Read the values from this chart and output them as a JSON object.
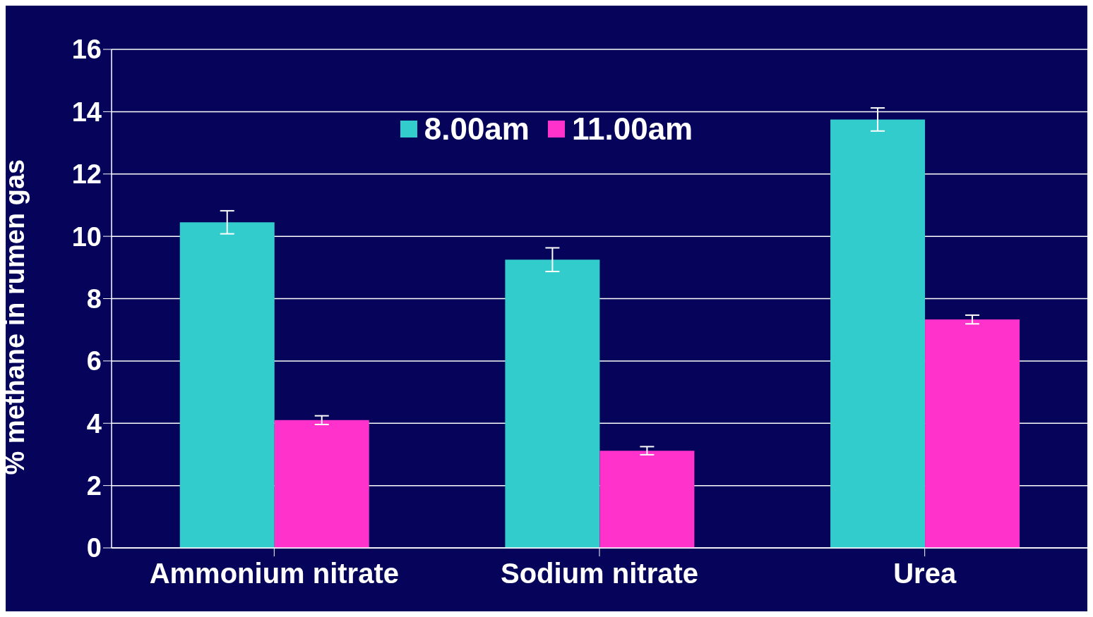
{
  "chart_data": {
    "type": "bar",
    "ylabel": "% methane in rumen gas",
    "categories": [
      "Ammonium nitrate",
      "Sodium nitrate",
      "Urea"
    ],
    "series": [
      {
        "name": "8.00am",
        "color": "#33cccc",
        "values": [
          10.45,
          9.25,
          13.75
        ],
        "errors": [
          0.37,
          0.38,
          0.37
        ]
      },
      {
        "name": "11.00am",
        "color": "#ff33cc",
        "values": [
          4.1,
          3.12,
          7.33
        ],
        "errors": [
          0.14,
          0.13,
          0.14
        ]
      }
    ],
    "ylim": [
      0,
      16
    ],
    "yticks": [
      0,
      2,
      4,
      6,
      8,
      10,
      12,
      14,
      16
    ],
    "grid": "y",
    "legend": "top"
  }
}
